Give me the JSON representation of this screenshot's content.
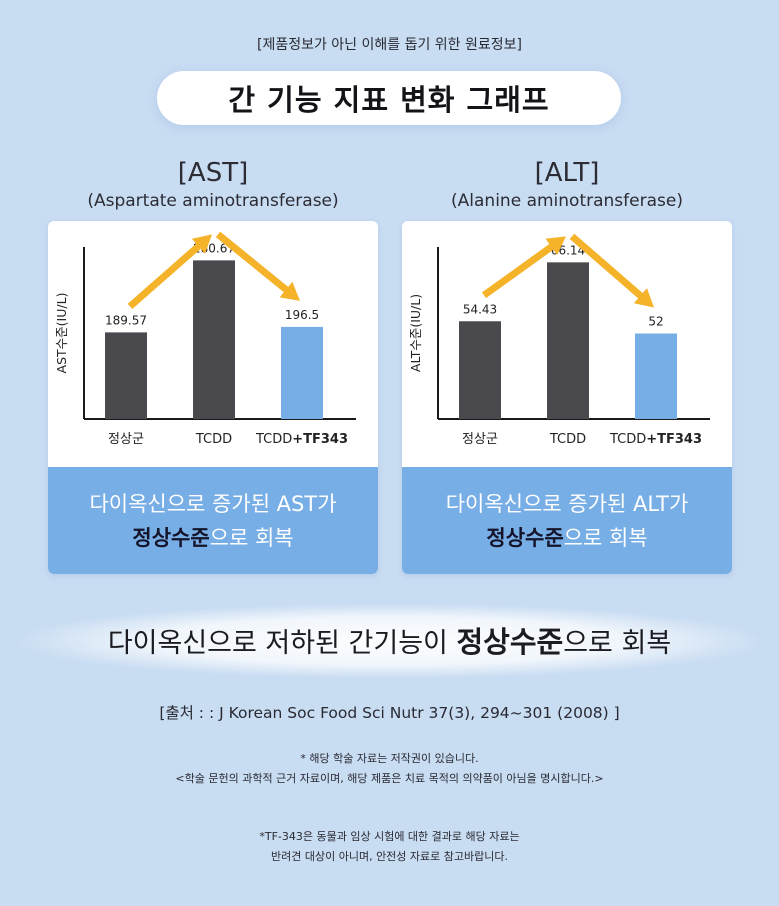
{
  "disclaimer_top": "[제품정보가 아닌 이해를 돕기 위한 원료정보]",
  "title": "간 기능 지표 변화 그래프",
  "colors": {
    "background": "#c8dcf2",
    "bar_dark": "#4a494e",
    "bar_highlight": "#78aee6",
    "arrow": "#f5b32a",
    "caption_bg": "#78aee6"
  },
  "charts": [
    {
      "abbr": "[AST]",
      "full_name": "(Aspartate aminotransferase)",
      "caption_line1": "다이옥신으로 증가된 AST가",
      "caption_strong": "정상수준",
      "caption_rest": "으로 회복"
    },
    {
      "abbr": "[ALT]",
      "full_name": "(Alanine aminotransferase)",
      "caption_line1": "다이옥신으로 증가된 ALT가",
      "caption_strong": "정상수준",
      "caption_rest": "으로 회복"
    }
  ],
  "chart_data": [
    {
      "type": "bar",
      "title": "[AST]",
      "subtitle": "(Aspartate aminotransferase)",
      "ylabel": "AST수준(IU/L)",
      "xlabel": "",
      "categories": [
        "정상군",
        "TCDD",
        "TCDD+TF343"
      ],
      "category_parts": [
        [
          "정상군",
          ""
        ],
        [
          "TCDD",
          ""
        ],
        [
          "TCDD",
          "+TF343"
        ]
      ],
      "values": [
        189.57,
        280.67,
        196.5
      ],
      "value_labels": [
        "189.57",
        "280.67",
        "196.5"
      ],
      "highlight_index": 2,
      "ylim": [
        80,
        290
      ],
      "grid": false,
      "arrows": [
        [
          0,
          1
        ],
        [
          1,
          2
        ]
      ]
    },
    {
      "type": "bar",
      "title": "[ALT]",
      "subtitle": "(Alanine aminotransferase)",
      "ylabel": "ALT수준(IU/L)",
      "xlabel": "",
      "categories": [
        "정상군",
        "TCDD",
        "TCDD+TF343"
      ],
      "category_parts": [
        [
          "정상군",
          ""
        ],
        [
          "TCDD",
          ""
        ],
        [
          "TCDD",
          "+TF343"
        ]
      ],
      "values": [
        54.43,
        66.14,
        52
      ],
      "value_labels": [
        "54.43",
        "66.14",
        "52"
      ],
      "highlight_index": 2,
      "ylim": [
        35,
        68
      ],
      "grid": false,
      "arrows": [
        [
          0,
          1
        ],
        [
          1,
          2
        ]
      ]
    }
  ],
  "summary": {
    "before": "다이옥신으로 저하된 간기능이 ",
    "strong": "정상수준",
    "after": "으로 회복"
  },
  "source": "[출처 : : J Korean Soc Food Sci Nutr 37(3), 294~301 (2008) ]",
  "note1_line1": "* 해당 학술 자료는 저작권이 있습니다.",
  "note1_line2": "<학술 문헌의 과학적 근거 자료이며, 해당 제품은 치료 목적의 의약품이 아님을 명시합니다.>",
  "note2_line1": "*TF-343은 동물과 임상 시험에 대한 결과로 해당 자료는",
  "note2_line2": "반려견 대상이 아니며, 안전성 자료로 참고바랍니다."
}
